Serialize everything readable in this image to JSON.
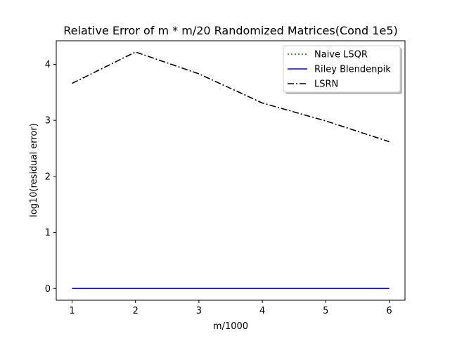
{
  "chart_data": {
    "type": "line",
    "title": "Relative Error of m * m/20 Randomized Matrices(Cond 1e5)",
    "xlabel": "m/1000",
    "ylabel": "log10(residual error)",
    "x": [
      1,
      2,
      3,
      4,
      5,
      6
    ],
    "xticks": [
      "1",
      "2",
      "3",
      "4",
      "5",
      "6"
    ],
    "yticks": [
      "0",
      "1",
      "2",
      "3",
      "4"
    ],
    "xlim": [
      0.75,
      6.25
    ],
    "ylim": [
      -0.21,
      4.42
    ],
    "grid": false,
    "legend_position": "upper right",
    "series": [
      {
        "name": "Naive LSQR",
        "values": [
          0.0,
          0.0,
          0.0,
          0.0,
          0.0,
          0.0
        ],
        "color": "#008000",
        "style": "dotted"
      },
      {
        "name": "Riley Blendenpik",
        "values": [
          0.0,
          0.0,
          0.0,
          0.0,
          0.0,
          0.0
        ],
        "color": "#0000ff",
        "style": "solid"
      },
      {
        "name": "LSRN",
        "values": [
          3.66,
          4.22,
          3.83,
          3.31,
          2.99,
          2.62
        ],
        "color": "#000000",
        "style": "dashdot"
      }
    ]
  }
}
